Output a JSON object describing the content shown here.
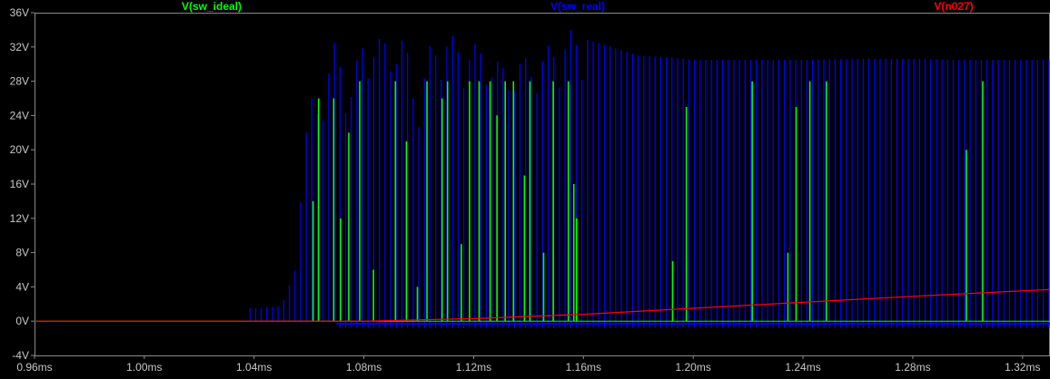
{
  "chart_data": {
    "type": "line",
    "legend_placement": "top",
    "grid": false,
    "xlabel": "",
    "ylabel": "",
    "xlim": [
      0.96,
      1.33
    ],
    "ylim": [
      -4,
      36
    ],
    "x_ticks": [
      0.96,
      1.0,
      1.04,
      1.08,
      1.12,
      1.16,
      1.2,
      1.24,
      1.28,
      1.32
    ],
    "x_tick_labels": [
      "0.96ms",
      "1.00ms",
      "1.04ms",
      "1.08ms",
      "1.12ms",
      "1.16ms",
      "1.20ms",
      "1.24ms",
      "1.28ms",
      "1.32ms"
    ],
    "y_ticks": [
      -4,
      0,
      4,
      8,
      12,
      16,
      20,
      24,
      28,
      32,
      36
    ],
    "y_tick_labels": [
      "-4V",
      "0V",
      "4V",
      "8V",
      "12V",
      "16V",
      "20V",
      "24V",
      "28V",
      "32V",
      "36V"
    ],
    "series": [
      {
        "name": "V(sw_ideal)",
        "color": "#00ff00",
        "style": "spikes",
        "baseline": 0,
        "x": [
          1.0615,
          1.0635,
          1.069,
          1.0715,
          1.0745,
          1.0785,
          1.0835,
          1.0915,
          1.0955,
          1.0995,
          1.103,
          1.1085,
          1.1105,
          1.1155,
          1.1185,
          1.122,
          1.126,
          1.1285,
          1.1315,
          1.1345,
          1.1385,
          1.1405,
          1.1455,
          1.149,
          1.1545,
          1.1565,
          1.1575,
          1.1925,
          1.1975,
          1.2215,
          1.2345,
          1.2375,
          1.2425,
          1.2485,
          1.2995,
          1.3055
        ],
        "values": [
          14,
          26,
          26,
          12,
          22,
          28,
          6,
          28,
          21,
          4,
          28,
          26,
          28,
          9,
          28,
          28,
          28,
          24,
          28,
          28,
          17,
          28,
          8,
          28,
          28,
          16,
          12,
          7,
          25,
          28,
          8,
          25,
          28,
          28,
          20,
          28
        ]
      },
      {
        "name": "V(sw_real)",
        "color": "#0000ff",
        "style": "pulse-train",
        "baseline": 0,
        "start": 1.0385,
        "period": 0.00205,
        "x": [
          1.04,
          1.045,
          1.05,
          1.055,
          1.06,
          1.065,
          1.07,
          1.075,
          1.08,
          1.085,
          1.09,
          1.095,
          1.1,
          1.105,
          1.11,
          1.115,
          1.12,
          1.125,
          1.13,
          1.135,
          1.14,
          1.145,
          1.15,
          1.155,
          1.16,
          1.165,
          1.17,
          1.175,
          1.18,
          1.19,
          1.2,
          1.22,
          1.24,
          1.26,
          1.28,
          1.3,
          1.32,
          1.33
        ],
        "values": [
          1.5,
          1.6,
          1.8,
          6.0,
          26.0,
          27.0,
          33.5,
          27.0,
          34.0,
          33.0,
          33.5,
          33.0,
          26.0,
          33.5,
          33.5,
          33.0,
          32.5,
          32.0,
          30.0,
          30.5,
          31.0,
          31.5,
          33.0,
          34.0,
          33.0,
          32.5,
          32.0,
          31.5,
          31.0,
          30.8,
          30.5,
          30.5,
          30.5,
          30.6,
          30.6,
          30.5,
          30.5,
          30.5
        ]
      },
      {
        "name": "V(n027)",
        "color": "#ff0000",
        "style": "line",
        "x": [
          0.96,
          1.08,
          1.12,
          1.16,
          1.2,
          1.24,
          1.28,
          1.33
        ],
        "values": [
          0.0,
          0.0,
          0.3,
          0.8,
          1.5,
          2.2,
          2.9,
          3.7
        ]
      }
    ]
  }
}
